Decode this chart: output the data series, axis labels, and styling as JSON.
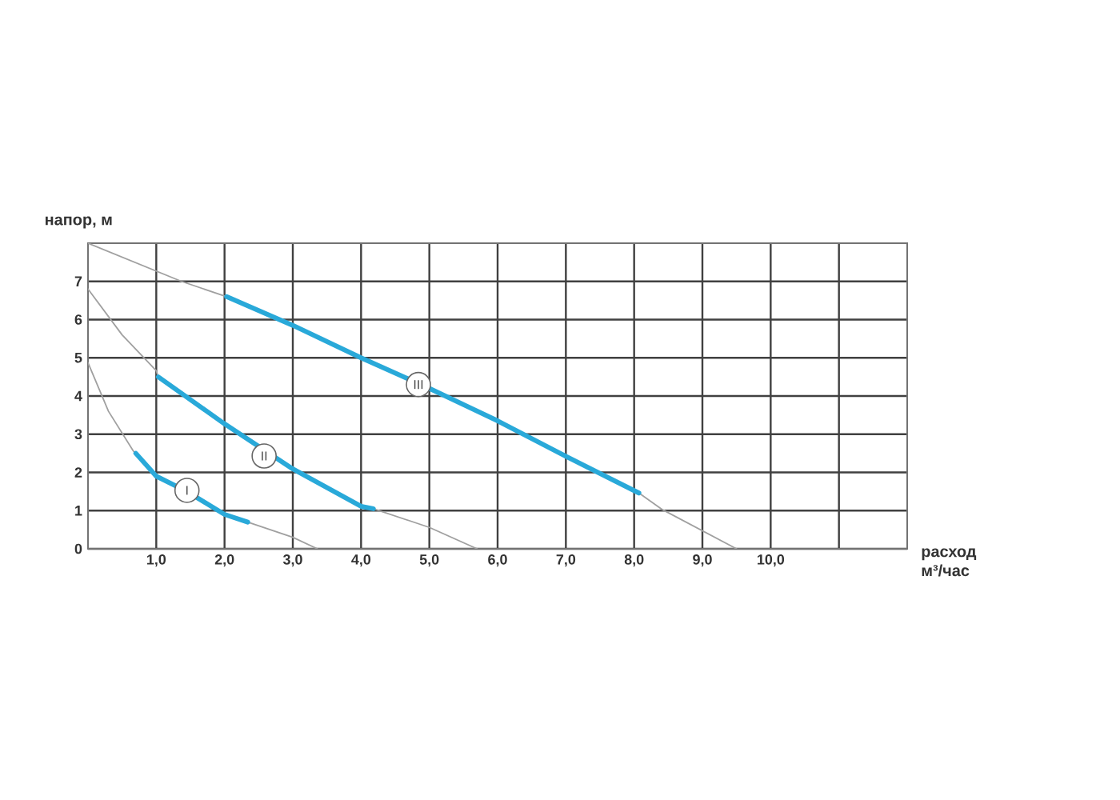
{
  "chart_data": {
    "type": "line",
    "xlabel": "расход м³/час",
    "ylabel": "напор, м",
    "xlim": [
      0,
      12
    ],
    "ylim": [
      0,
      8
    ],
    "xticks": [
      {
        "value": 1,
        "label": "1,0"
      },
      {
        "value": 2,
        "label": "2,0"
      },
      {
        "value": 3,
        "label": "3,0"
      },
      {
        "value": 4,
        "label": "4,0"
      },
      {
        "value": 5,
        "label": "5,0"
      },
      {
        "value": 6,
        "label": "6,0"
      },
      {
        "value": 7,
        "label": "7,0"
      },
      {
        "value": 8,
        "label": "8,0"
      },
      {
        "value": 9,
        "label": "9,0"
      },
      {
        "value": 10,
        "label": "10,0"
      },
      {
        "value": 11,
        "label": null
      }
    ],
    "yticks": [
      0,
      1,
      2,
      3,
      4,
      5,
      6,
      7
    ],
    "grid": true,
    "marker": "none",
    "line_style": "solid",
    "series": [
      {
        "color": "#a0a0a0",
        "x": [
          0,
          0.3,
          0.66,
          0.7,
          1,
          2,
          2.34,
          3,
          3.36
        ],
        "values": [
          4.87,
          3.6,
          2.57,
          2.5,
          null,
          null,
          0.7,
          0.3,
          0
        ]
      },
      {
        "color": "#a0a0a0",
        "x": [
          0,
          0.5,
          1,
          1.03,
          2,
          3,
          4,
          4.18,
          5,
          5.7
        ],
        "values": [
          6.8,
          5.6,
          4.66,
          4.5,
          null,
          null,
          null,
          1.05,
          0.56,
          0
        ]
      },
      {
        "color": "#a0a0a0",
        "x": [
          0,
          1.37,
          2.03,
          3,
          4,
          5,
          6,
          7,
          8.07,
          8.4,
          9.5
        ],
        "values": [
          8,
          7,
          6.6,
          null,
          null,
          null,
          null,
          null,
          1.46,
          1.04,
          0
        ]
      },
      {
        "color": "#29a9d9",
        "x": [
          0.7,
          1,
          1.45,
          2,
          2.34
        ],
        "values": [
          2.5,
          1.9,
          1.5,
          0.9,
          0.7
        ]
      },
      {
        "color": "#29a9d9",
        "x": [
          1.03,
          2,
          3,
          4,
          4.18
        ],
        "values": [
          4.5,
          3.27,
          2.09,
          1.11,
          1.05
        ]
      },
      {
        "color": "#29a9d9",
        "x": [
          2.03,
          3,
          4,
          5,
          6,
          7,
          8.07
        ],
        "values": [
          6.6,
          5.85,
          5,
          4.2,
          3.35,
          2.42,
          1.46
        ]
      }
    ],
    "annotations": [
      {
        "text": "I",
        "x": 1.45,
        "y": 1.53
      },
      {
        "text": "II",
        "x": 2.58,
        "y": 2.43
      },
      {
        "text": "III",
        "x": 4.84,
        "y": 4.3
      }
    ]
  }
}
